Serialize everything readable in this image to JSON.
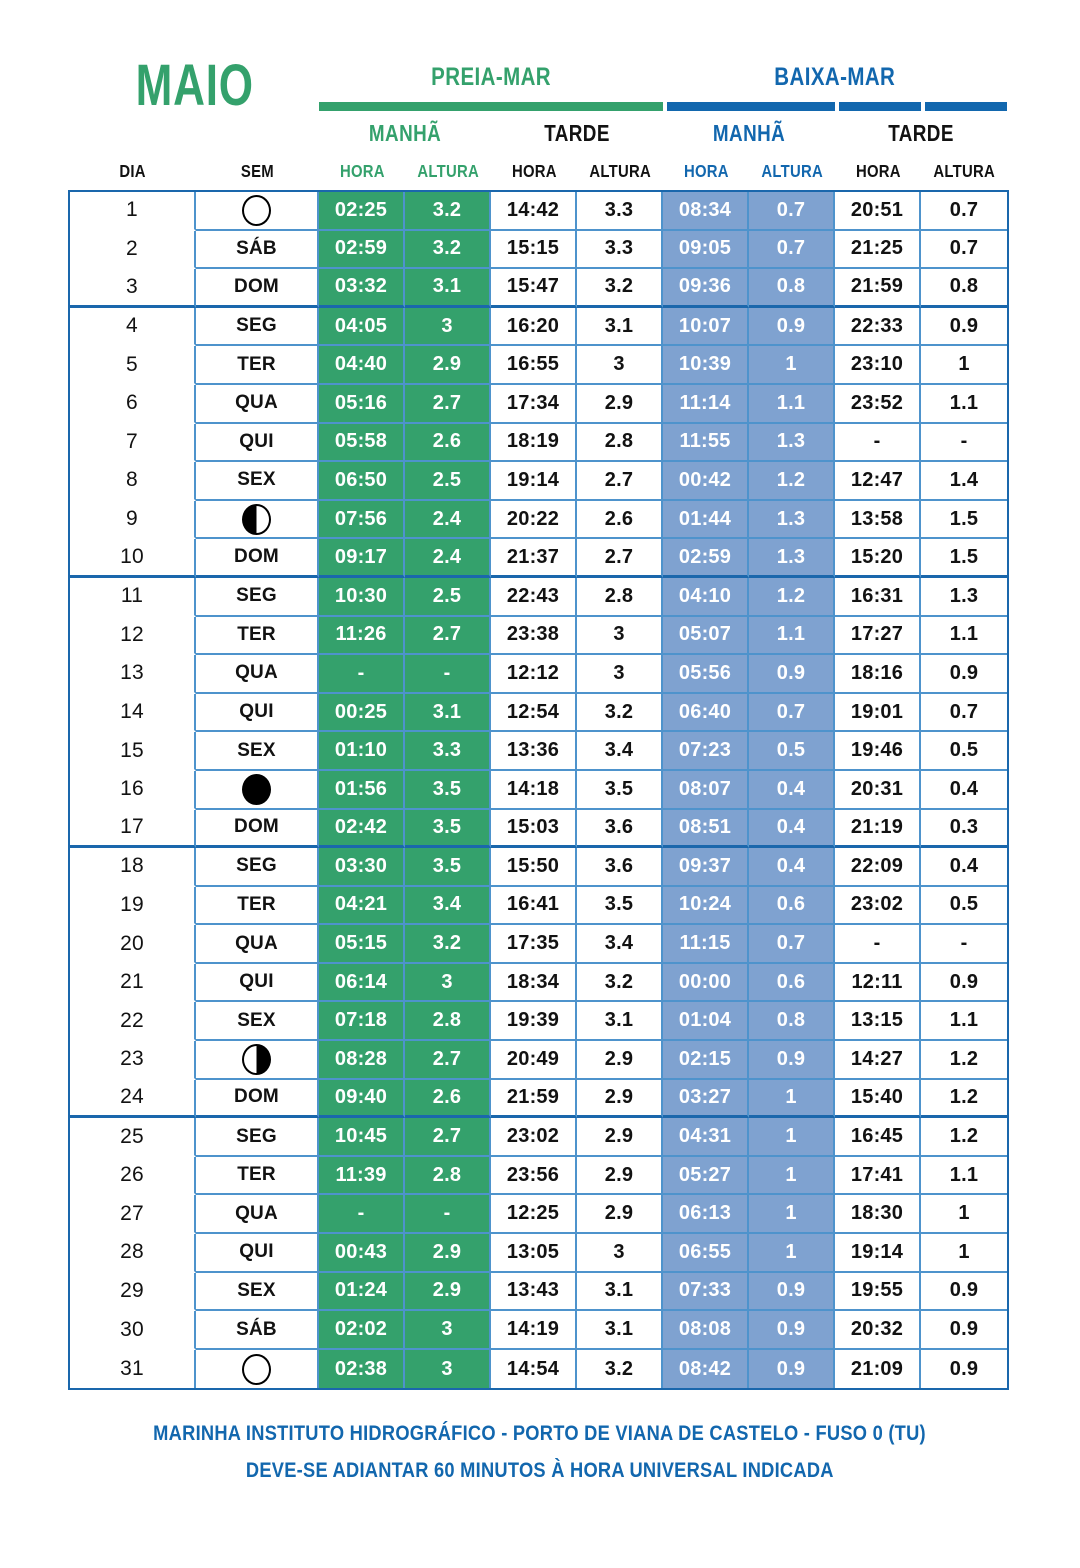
{
  "title": "MAIO",
  "groups": {
    "high": "PREIA-MAR",
    "low": "BAIXA-MAR"
  },
  "periods": {
    "morning": "MANHÃ",
    "afternoon": "TARDE"
  },
  "columns": {
    "day": "DIA",
    "weekday": "SEM",
    "hour": "HORA",
    "height": "ALTURA"
  },
  "colors": {
    "green": "#34A16C",
    "blue": "#1267AE",
    "cell_blue": "#7FA2D0",
    "grid_line": "#4E93CC",
    "week_separator": "#1A67AC",
    "text": "#121212"
  },
  "footer": {
    "line1": "MARINHA INSTITUTO HIDROGRÁFICO - PORTO DE VIANA DE CASTELO - FUSO 0 (TU)",
    "line2": "DEVE-SE ADIANTAR 60 MINUTOS À HORA UNIVERSAL INDICADA"
  },
  "rows": [
    {
      "day": "1",
      "weekday": "",
      "moon": "full",
      "cells": [
        "02:25",
        "3.2",
        "14:42",
        "3.3",
        "08:34",
        "0.7",
        "20:51",
        "0.7"
      ],
      "week_end": false
    },
    {
      "day": "2",
      "weekday": "SÁB",
      "moon": null,
      "cells": [
        "02:59",
        "3.2",
        "15:15",
        "3.3",
        "09:05",
        "0.7",
        "21:25",
        "0.7"
      ],
      "week_end": false
    },
    {
      "day": "3",
      "weekday": "DOM",
      "moon": null,
      "cells": [
        "03:32",
        "3.1",
        "15:47",
        "3.2",
        "09:36",
        "0.8",
        "21:59",
        "0.8"
      ],
      "week_end": true
    },
    {
      "day": "4",
      "weekday": "SEG",
      "moon": null,
      "cells": [
        "04:05",
        "3",
        "16:20",
        "3.1",
        "10:07",
        "0.9",
        "22:33",
        "0.9"
      ],
      "week_end": false
    },
    {
      "day": "5",
      "weekday": "TER",
      "moon": null,
      "cells": [
        "04:40",
        "2.9",
        "16:55",
        "3",
        "10:39",
        "1",
        "23:10",
        "1"
      ],
      "week_end": false
    },
    {
      "day": "6",
      "weekday": "QUA",
      "moon": null,
      "cells": [
        "05:16",
        "2.7",
        "17:34",
        "2.9",
        "11:14",
        "1.1",
        "23:52",
        "1.1"
      ],
      "week_end": false
    },
    {
      "day": "7",
      "weekday": "QUI",
      "moon": null,
      "cells": [
        "05:58",
        "2.6",
        "18:19",
        "2.8",
        "11:55",
        "1.3",
        "-",
        "-"
      ],
      "week_end": false
    },
    {
      "day": "8",
      "weekday": "SEX",
      "moon": null,
      "cells": [
        "06:50",
        "2.5",
        "19:14",
        "2.7",
        "00:42",
        "1.2",
        "12:47",
        "1.4"
      ],
      "week_end": false
    },
    {
      "day": "9",
      "weekday": "",
      "moon": "last-quarter",
      "cells": [
        "07:56",
        "2.4",
        "20:22",
        "2.6",
        "01:44",
        "1.3",
        "13:58",
        "1.5"
      ],
      "week_end": false
    },
    {
      "day": "10",
      "weekday": "DOM",
      "moon": null,
      "cells": [
        "09:17",
        "2.4",
        "21:37",
        "2.7",
        "02:59",
        "1.3",
        "15:20",
        "1.5"
      ],
      "week_end": true
    },
    {
      "day": "11",
      "weekday": "SEG",
      "moon": null,
      "cells": [
        "10:30",
        "2.5",
        "22:43",
        "2.8",
        "04:10",
        "1.2",
        "16:31",
        "1.3"
      ],
      "week_end": false
    },
    {
      "day": "12",
      "weekday": "TER",
      "moon": null,
      "cells": [
        "11:26",
        "2.7",
        "23:38",
        "3",
        "05:07",
        "1.1",
        "17:27",
        "1.1"
      ],
      "week_end": false
    },
    {
      "day": "13",
      "weekday": "QUA",
      "moon": null,
      "cells": [
        "-",
        "-",
        "12:12",
        "3",
        "05:56",
        "0.9",
        "18:16",
        "0.9"
      ],
      "week_end": false
    },
    {
      "day": "14",
      "weekday": "QUI",
      "moon": null,
      "cells": [
        "00:25",
        "3.1",
        "12:54",
        "3.2",
        "06:40",
        "0.7",
        "19:01",
        "0.7"
      ],
      "week_end": false
    },
    {
      "day": "15",
      "weekday": "SEX",
      "moon": null,
      "cells": [
        "01:10",
        "3.3",
        "13:36",
        "3.4",
        "07:23",
        "0.5",
        "19:46",
        "0.5"
      ],
      "week_end": false
    },
    {
      "day": "16",
      "weekday": "",
      "moon": "new",
      "cells": [
        "01:56",
        "3.5",
        "14:18",
        "3.5",
        "08:07",
        "0.4",
        "20:31",
        "0.4"
      ],
      "week_end": false
    },
    {
      "day": "17",
      "weekday": "DOM",
      "moon": null,
      "cells": [
        "02:42",
        "3.5",
        "15:03",
        "3.6",
        "08:51",
        "0.4",
        "21:19",
        "0.3"
      ],
      "week_end": true
    },
    {
      "day": "18",
      "weekday": "SEG",
      "moon": null,
      "cells": [
        "03:30",
        "3.5",
        "15:50",
        "3.6",
        "09:37",
        "0.4",
        "22:09",
        "0.4"
      ],
      "week_end": false
    },
    {
      "day": "19",
      "weekday": "TER",
      "moon": null,
      "cells": [
        "04:21",
        "3.4",
        "16:41",
        "3.5",
        "10:24",
        "0.6",
        "23:02",
        "0.5"
      ],
      "week_end": false
    },
    {
      "day": "20",
      "weekday": "QUA",
      "moon": null,
      "cells": [
        "05:15",
        "3.2",
        "17:35",
        "3.4",
        "11:15",
        "0.7",
        "-",
        "-"
      ],
      "week_end": false
    },
    {
      "day": "21",
      "weekday": "QUI",
      "moon": null,
      "cells": [
        "06:14",
        "3",
        "18:34",
        "3.2",
        "00:00",
        "0.6",
        "12:11",
        "0.9"
      ],
      "week_end": false
    },
    {
      "day": "22",
      "weekday": "SEX",
      "moon": null,
      "cells": [
        "07:18",
        "2.8",
        "19:39",
        "3.1",
        "01:04",
        "0.8",
        "13:15",
        "1.1"
      ],
      "week_end": false
    },
    {
      "day": "23",
      "weekday": "",
      "moon": "first-quarter",
      "cells": [
        "08:28",
        "2.7",
        "20:49",
        "2.9",
        "02:15",
        "0.9",
        "14:27",
        "1.2"
      ],
      "week_end": false
    },
    {
      "day": "24",
      "weekday": "DOM",
      "moon": null,
      "cells": [
        "09:40",
        "2.6",
        "21:59",
        "2.9",
        "03:27",
        "1",
        "15:40",
        "1.2"
      ],
      "week_end": true
    },
    {
      "day": "25",
      "weekday": "SEG",
      "moon": null,
      "cells": [
        "10:45",
        "2.7",
        "23:02",
        "2.9",
        "04:31",
        "1",
        "16:45",
        "1.2"
      ],
      "week_end": false
    },
    {
      "day": "26",
      "weekday": "TER",
      "moon": null,
      "cells": [
        "11:39",
        "2.8",
        "23:56",
        "2.9",
        "05:27",
        "1",
        "17:41",
        "1.1"
      ],
      "week_end": false
    },
    {
      "day": "27",
      "weekday": "QUA",
      "moon": null,
      "cells": [
        "-",
        "-",
        "12:25",
        "2.9",
        "06:13",
        "1",
        "18:30",
        "1"
      ],
      "week_end": false
    },
    {
      "day": "28",
      "weekday": "QUI",
      "moon": null,
      "cells": [
        "00:43",
        "2.9",
        "13:05",
        "3",
        "06:55",
        "1",
        "19:14",
        "1"
      ],
      "week_end": false
    },
    {
      "day": "29",
      "weekday": "SEX",
      "moon": null,
      "cells": [
        "01:24",
        "2.9",
        "13:43",
        "3.1",
        "07:33",
        "0.9",
        "19:55",
        "0.9"
      ],
      "week_end": false
    },
    {
      "day": "30",
      "weekday": "SÁB",
      "moon": null,
      "cells": [
        "02:02",
        "3",
        "14:19",
        "3.1",
        "08:08",
        "0.9",
        "20:32",
        "0.9"
      ],
      "week_end": false
    },
    {
      "day": "31",
      "weekday": "",
      "moon": "full",
      "cells": [
        "02:38",
        "3",
        "14:54",
        "3.2",
        "08:42",
        "0.9",
        "21:09",
        "0.9"
      ],
      "week_end": false
    }
  ]
}
